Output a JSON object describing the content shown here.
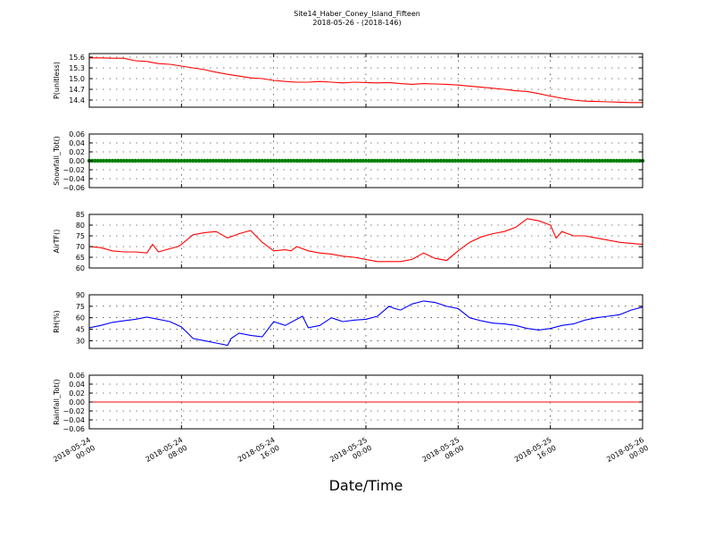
{
  "figure": {
    "title": "Site14_Haber_Coney_Island_Fifteen",
    "subtitle": "2018-05-26 - (2018-146)",
    "xlabel": "Date/Time"
  },
  "chart_data": [
    {
      "type": "line",
      "ylabel": "P(unitless)",
      "ylim": [
        14.2,
        15.7
      ],
      "yticks": [
        "15.6",
        "15.3",
        "15.0",
        "14.7",
        "14.4"
      ],
      "ytick_values": [
        15.6,
        15.3,
        15.0,
        14.7,
        14.4
      ],
      "grid": true,
      "series": [
        {
          "color": "#ff0000",
          "x": [
            0,
            1,
            2,
            3,
            4,
            5,
            6,
            7,
            8,
            9,
            10,
            11,
            12,
            13,
            14,
            15,
            16,
            17,
            18,
            19,
            20,
            21,
            22,
            23,
            24,
            25,
            26,
            27,
            28,
            29,
            30,
            31,
            32,
            33,
            34,
            35,
            36,
            37,
            38,
            39,
            40,
            41,
            42,
            43,
            44,
            45,
            46,
            47,
            48
          ],
          "y": [
            15.58,
            15.58,
            15.57,
            15.57,
            15.5,
            15.48,
            15.42,
            15.4,
            15.35,
            15.3,
            15.25,
            15.18,
            15.12,
            15.07,
            15.02,
            15.0,
            14.95,
            14.92,
            14.9,
            14.9,
            14.92,
            14.9,
            14.88,
            14.9,
            14.89,
            14.88,
            14.89,
            14.86,
            14.84,
            14.86,
            14.85,
            14.84,
            14.82,
            14.79,
            14.76,
            14.73,
            14.7,
            14.66,
            14.64,
            14.58,
            14.51,
            14.45,
            14.4,
            14.37,
            14.36,
            14.35,
            14.34,
            14.33,
            14.33
          ]
        }
      ]
    },
    {
      "type": "scatter",
      "ylabel": "Snowfall_Tot()",
      "ylim": [
        -0.06,
        0.06
      ],
      "yticks": [
        "0.06",
        "0.04",
        "0.02",
        "0.00",
        "−0.02",
        "−0.04",
        "−0.06"
      ],
      "ytick_values": [
        0.06,
        0.04,
        0.02,
        0.0,
        -0.02,
        -0.04,
        -0.06
      ],
      "grid": true,
      "series": [
        {
          "color": "#008000",
          "x_range": [
            0,
            48
          ],
          "y": 0
        }
      ]
    },
    {
      "type": "line",
      "ylabel": "AirTF()",
      "ylim": [
        60,
        85
      ],
      "yticks": [
        "85",
        "80",
        "75",
        "70",
        "65",
        "60"
      ],
      "ytick_values": [
        85,
        80,
        75,
        70,
        65,
        60
      ],
      "grid": true,
      "series": [
        {
          "color": "#ff0000",
          "x": [
            0,
            1,
            2,
            3,
            4,
            5,
            5.5,
            6,
            7,
            7.7,
            8,
            9,
            10,
            11,
            12,
            13,
            14,
            15,
            16,
            17,
            17.5,
            18,
            19,
            20,
            21,
            22,
            23,
            24,
            25,
            26,
            27,
            28,
            29,
            30,
            31,
            32,
            33,
            34,
            35,
            36,
            37,
            37.5,
            38,
            39,
            40,
            40.5,
            41,
            42,
            43,
            44,
            45,
            46,
            47,
            48
          ],
          "y": [
            70,
            69.5,
            68,
            67.5,
            67.5,
            67,
            71,
            67.5,
            69,
            70,
            71,
            75.5,
            76.5,
            77,
            74,
            76,
            77.5,
            72,
            68,
            68.5,
            68,
            70,
            68,
            67,
            66.5,
            65.5,
            65,
            64,
            63,
            63,
            63,
            64,
            67,
            64.5,
            63.5,
            68,
            72,
            74.5,
            76,
            77,
            79,
            81,
            83,
            82,
            80,
            74,
            77,
            75,
            75,
            74,
            73,
            72,
            71.5,
            71
          ]
        }
      ]
    },
    {
      "type": "line",
      "ylabel": "RH(%)",
      "ylim": [
        20,
        90
      ],
      "yticks": [
        "90",
        "75",
        "60",
        "45",
        "30"
      ],
      "ytick_values": [
        90,
        75,
        60,
        45,
        30
      ],
      "grid": true,
      "series": [
        {
          "color": "#0000ff",
          "x": [
            0,
            1,
            2,
            3,
            4,
            5,
            6,
            7,
            8,
            9,
            10,
            11,
            12,
            12.3,
            13,
            14,
            15,
            16,
            17,
            18,
            18.5,
            19,
            20,
            21,
            22,
            23,
            24,
            25,
            26,
            26.5,
            27,
            28,
            29,
            30,
            31,
            32,
            33,
            34,
            35,
            36,
            37,
            38,
            39,
            40,
            41,
            42,
            43,
            44,
            45,
            46,
            47,
            48
          ],
          "y": [
            47,
            50,
            54,
            56,
            58,
            61,
            58,
            55,
            48,
            33,
            30,
            27,
            24,
            33,
            40,
            37,
            35,
            55,
            50,
            58,
            62,
            47,
            50,
            60,
            55,
            57,
            58,
            62,
            75,
            72,
            70,
            78,
            82,
            80,
            75,
            72,
            60,
            56,
            53,
            52,
            50,
            46,
            44,
            46,
            50,
            52,
            57,
            60,
            62,
            64,
            70,
            74
          ]
        }
      ]
    },
    {
      "type": "line",
      "ylabel": "Rainfall_Tot()",
      "ylim": [
        -0.06,
        0.06
      ],
      "yticks": [
        "0.06",
        "0.04",
        "0.02",
        "0.00",
        "−0.02",
        "−0.04",
        "−0.06"
      ],
      "ytick_values": [
        0.06,
        0.04,
        0.02,
        0.0,
        -0.02,
        -0.04,
        -0.06
      ],
      "grid": true,
      "series": [
        {
          "color": "#ff0000",
          "x": [
            0,
            48
          ],
          "y": [
            0,
            0
          ]
        }
      ]
    }
  ],
  "x_axis": {
    "range_hours": [
      0,
      48
    ],
    "ticks": [
      {
        "hour": 0,
        "line1": "2018-05-24",
        "line2": "00:00"
      },
      {
        "hour": 8,
        "line1": "2018-05-24",
        "line2": "08:00"
      },
      {
        "hour": 16,
        "line1": "2018-05-24",
        "line2": "16:00"
      },
      {
        "hour": 24,
        "line1": "2018-05-25",
        "line2": "00:00"
      },
      {
        "hour": 32,
        "line1": "2018-05-25",
        "line2": "08:00"
      },
      {
        "hour": 40,
        "line1": "2018-05-25",
        "line2": "16:00"
      },
      {
        "hour": 48,
        "line1": "2018-05-26",
        "line2": "00:00"
      }
    ]
  }
}
